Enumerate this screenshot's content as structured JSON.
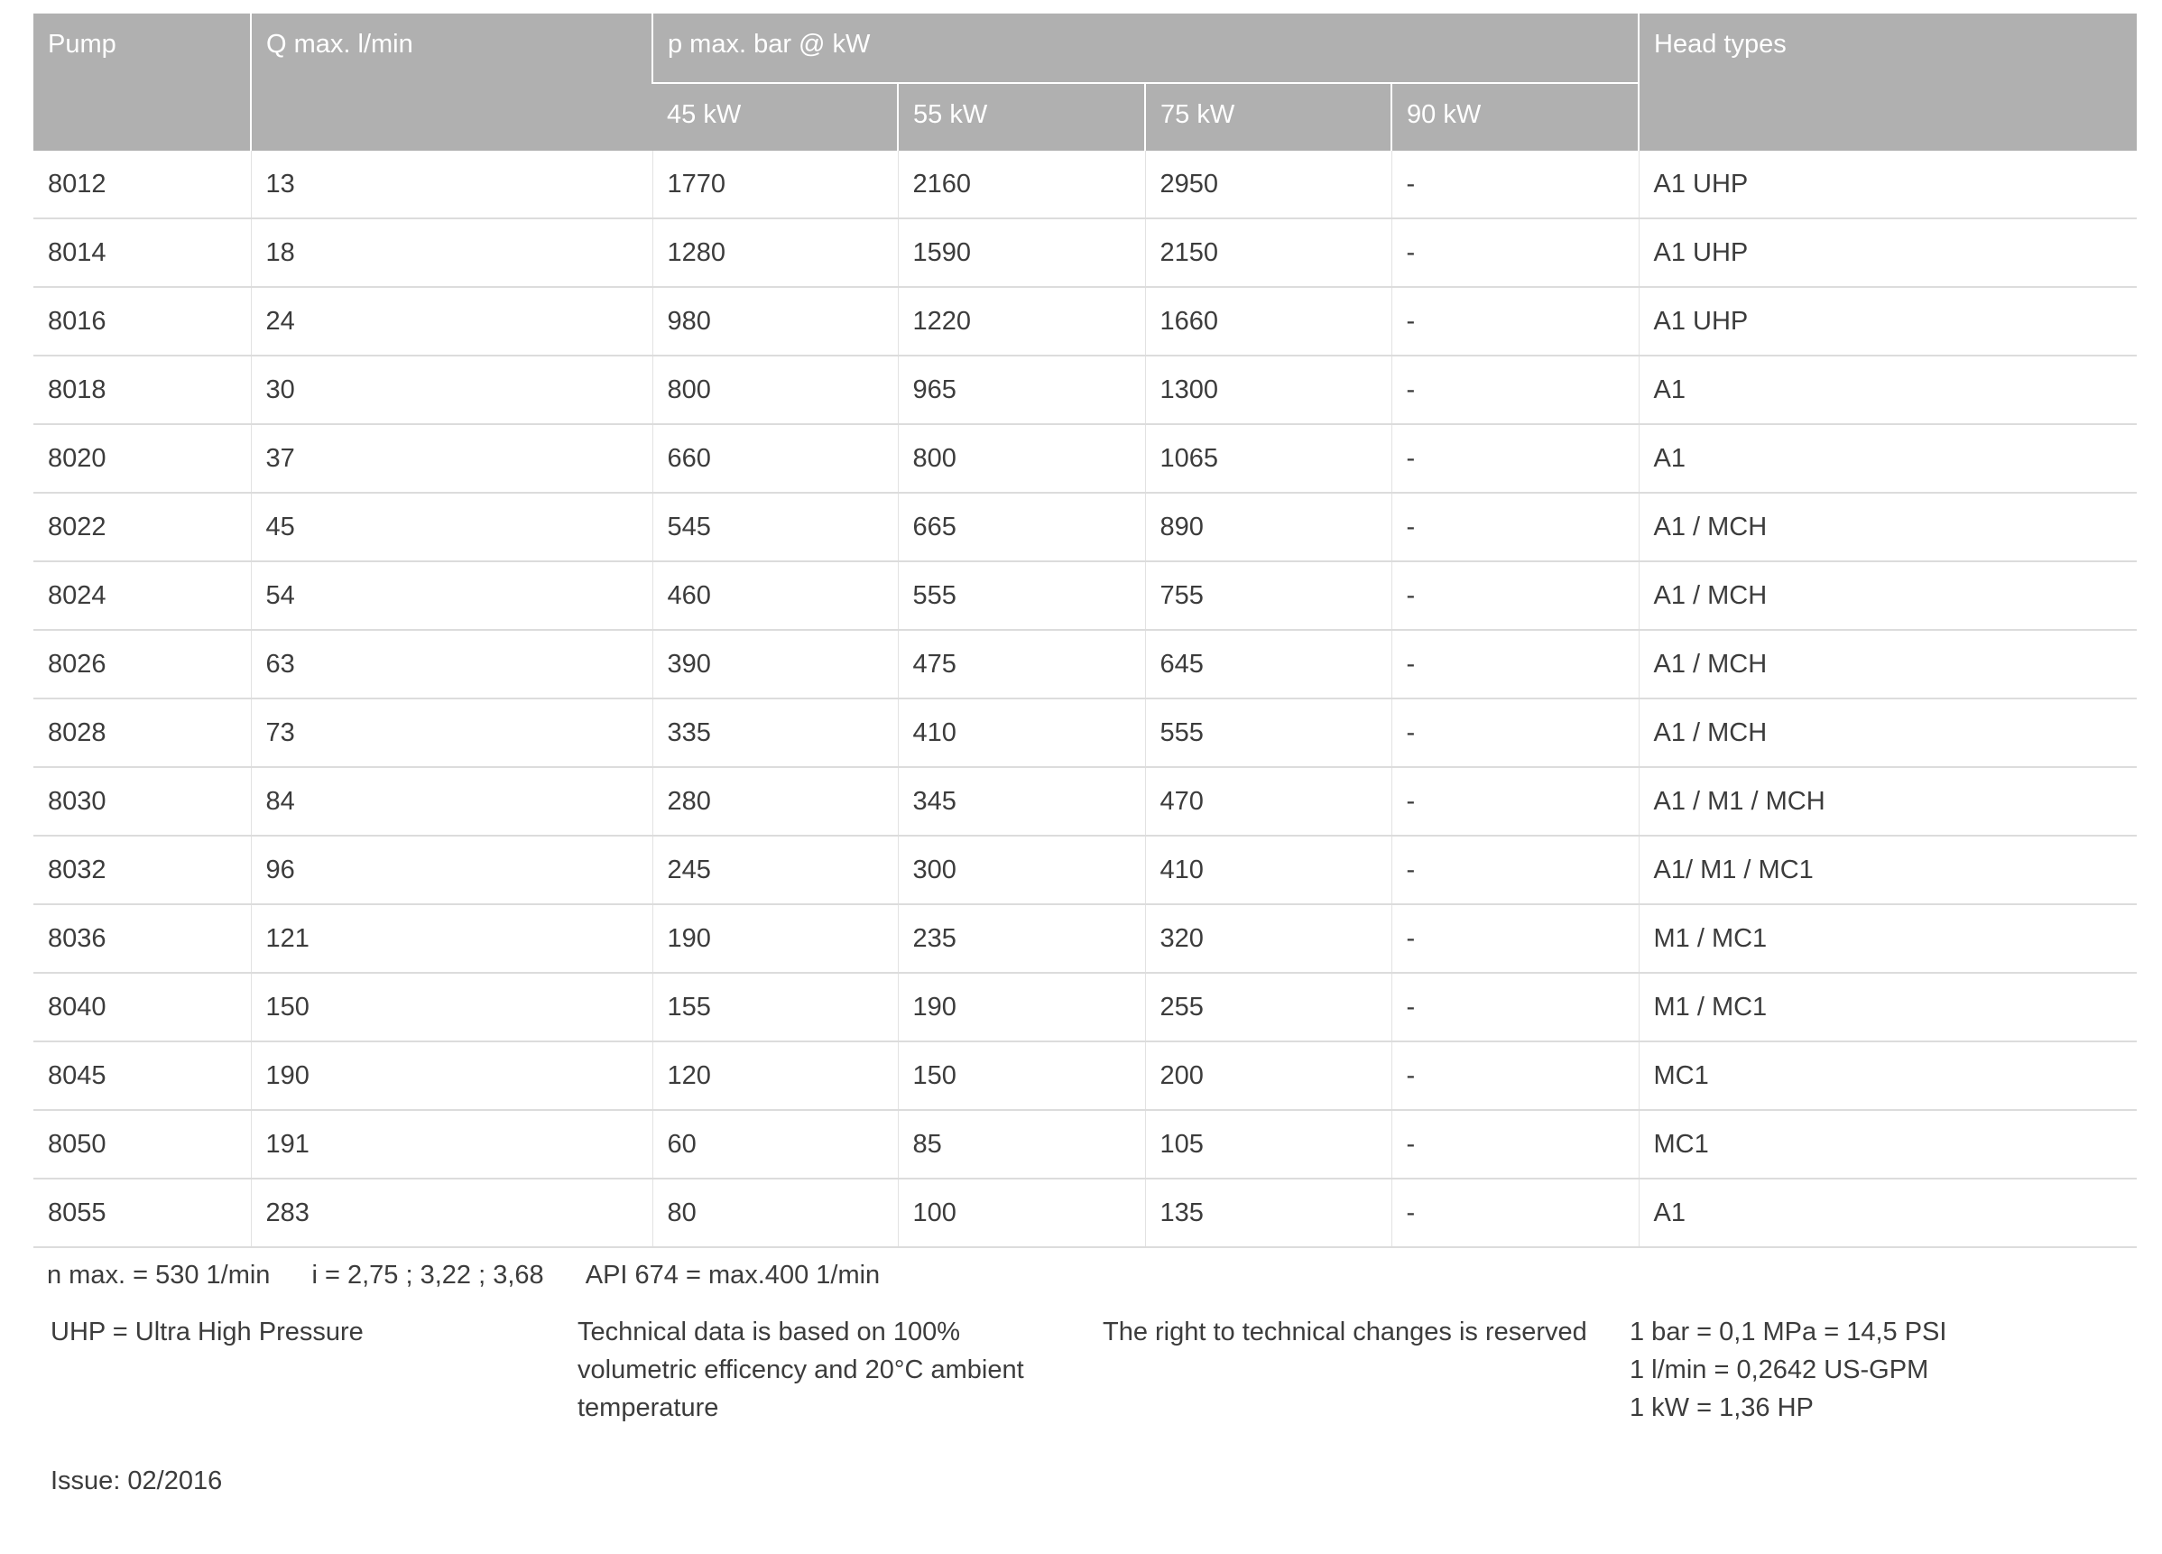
{
  "table": {
    "headers": {
      "pump": "Pump",
      "q_max": "Q max. l/min",
      "p_max": "p max. bar @ kW",
      "head_types": "Head types",
      "kw": [
        "45 kW",
        "55 kW",
        "75 kW",
        "90 kW"
      ]
    },
    "rows": [
      [
        "8012",
        "13",
        "1770",
        "2160",
        "2950",
        "-",
        "A1 UHP"
      ],
      [
        "8014",
        "18",
        "1280",
        "1590",
        "2150",
        "-",
        "A1 UHP"
      ],
      [
        "8016",
        "24",
        "980",
        "1220",
        "1660",
        "-",
        "A1 UHP"
      ],
      [
        "8018",
        "30",
        "800",
        "965",
        "1300",
        "-",
        "A1"
      ],
      [
        "8020",
        "37",
        "660",
        "800",
        "1065",
        "-",
        "A1"
      ],
      [
        "8022",
        "45",
        "545",
        "665",
        "890",
        "-",
        "A1 / MCH"
      ],
      [
        "8024",
        "54",
        "460",
        "555",
        "755",
        "-",
        "A1 / MCH"
      ],
      [
        "8026",
        "63",
        "390",
        "475",
        "645",
        "-",
        "A1 / MCH"
      ],
      [
        "8028",
        "73",
        "335",
        "410",
        "555",
        "-",
        "A1 / MCH"
      ],
      [
        "8030",
        "84",
        "280",
        "345",
        "470",
        "-",
        "A1 / M1 / MCH"
      ],
      [
        "8032",
        "96",
        "245",
        "300",
        "410",
        "-",
        "A1/ M1 / MC1"
      ],
      [
        "8036",
        "121",
        "190",
        "235",
        "320",
        "-",
        "M1 / MC1"
      ],
      [
        "8040",
        "150",
        "155",
        "190",
        "255",
        "-",
        "M1 / MC1"
      ],
      [
        "8045",
        "190",
        "120",
        "150",
        "200",
        "-",
        "MC1"
      ],
      [
        "8050",
        "191",
        "60",
        "85",
        "105",
        "-",
        "MC1"
      ],
      [
        "8055",
        "283",
        "80",
        "100",
        "135",
        "-",
        "A1"
      ]
    ]
  },
  "footer": {
    "specs": [
      "n max. = 530 1/min",
      "i = 2,75 ; 3,22 ; 3,68",
      "API 674 = max.400 1/min"
    ],
    "uhp": "UHP = Ultra High Pressure",
    "technical": [
      "Technical data is based on 100%",
      "volumetric efficency and 20°C ambient",
      "temperature"
    ],
    "rights": "The right to technical changes is reserved",
    "conversions": [
      "1 bar = 0,1 MPa = 14,5 PSI",
      "1 l/min = 0,2642 US-GPM",
      "1 kW = 1,36 HP"
    ],
    "issue": "Issue: 02/2016"
  },
  "colors": {
    "header_bg": "#b0b0b0",
    "header_text": "#ffffff"
  }
}
